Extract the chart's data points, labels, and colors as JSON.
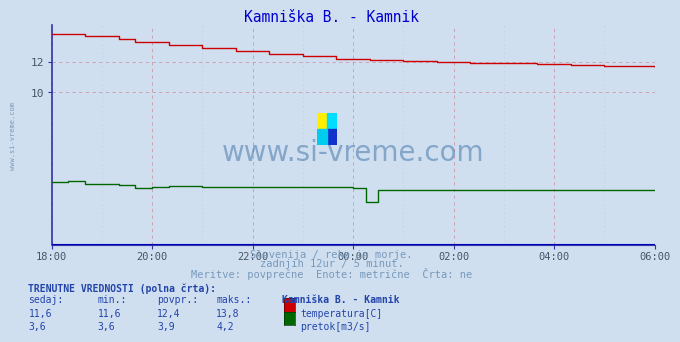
{
  "title": "Kamniška B. - Kamnik",
  "title_color": "#0000cc",
  "bg_color": "#d0dff0",
  "plot_bg_color": "#d0dff0",
  "grid_color": "#b8c8dc",
  "x_tick_labels": [
    "18:00",
    "20:00",
    "22:00",
    "00:00",
    "02:00",
    "04:00",
    "06:00"
  ],
  "y_ticks": [
    10,
    12
  ],
  "ylim_temp": [
    0,
    14.4
  ],
  "xlim": [
    0,
    144
  ],
  "temp_color": "#cc0000",
  "flow_color": "#006600",
  "height_color": "#0000bb",
  "axis_color": "#3333aa",
  "watermark_text": "www.si-vreme.com",
  "watermark_color": "#4477aa",
  "watermark_alpha": 0.55,
  "subtitle1": "Slovenija / reke in morje.",
  "subtitle2": "zadnjih 12ur / 5 minut.",
  "subtitle3": "Meritve: povprečne  Enote: metrične  Črta: ne",
  "subtitle_color": "#7799bb",
  "footer_color": "#2244aa",
  "label_trenutne": "TRENUTNE VREDNOSTI (polna črta):",
  "col_sedaj": "sedaj:",
  "col_min": "min.:",
  "col_povpr": "povpr.:",
  "col_maks": "maks.:",
  "col_station": "Kamniška B. - Kamnik",
  "temp_sedaj": "11,6",
  "temp_min": "11,6",
  "temp_povpr": "12,4",
  "temp_maks": "13,8",
  "temp_label": "temperatura[C]",
  "flow_sedaj": "3,6",
  "flow_min": "3,6",
  "flow_povpr": "3,9",
  "flow_maks": "4,2",
  "flow_label": "pretok[m3/s]",
  "left_label": "www.si-vreme.com",
  "left_label_color": "#7799bb"
}
